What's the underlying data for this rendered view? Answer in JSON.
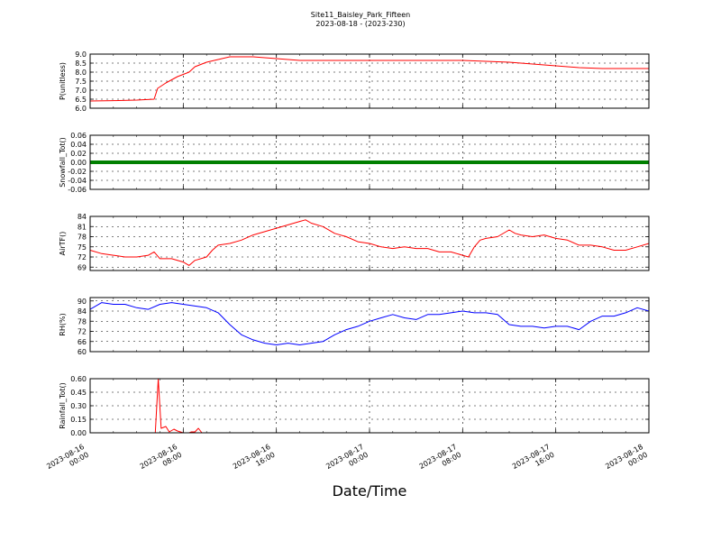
{
  "figure": {
    "title_line1": "Site11_Baisley_Park_Fifteen",
    "title_line2": "2023-08-18 - (2023-230)",
    "xlabel": "Date/Time",
    "x_ticks": [
      {
        "t": 0,
        "line1": "2023-08-16",
        "line2": "00:00"
      },
      {
        "t": 8,
        "line1": "2023-08-16",
        "line2": "08:00"
      },
      {
        "t": 16,
        "line1": "2023-08-16",
        "line2": "16:00"
      },
      {
        "t": 24,
        "line1": "2023-08-17",
        "line2": "00:00"
      },
      {
        "t": 32,
        "line1": "2023-08-17",
        "line2": "08:00"
      },
      {
        "t": 40,
        "line1": "2023-08-17",
        "line2": "16:00"
      },
      {
        "t": 48,
        "line1": "2023-08-18",
        "line2": "00:00"
      }
    ],
    "x_range_hours": [
      0,
      48
    ]
  },
  "chart_data": [
    {
      "type": "line",
      "ylabel": "P(unitless)",
      "ylim": [
        6.0,
        9.0
      ],
      "yticks": [
        "6.0",
        "6.5",
        "7.0",
        "7.5",
        "8.0",
        "8.5",
        "9.0"
      ],
      "grid": true,
      "series": [
        {
          "color": "#ff0000",
          "points": [
            [
              0,
              6.4
            ],
            [
              2,
              6.42
            ],
            [
              4,
              6.45
            ],
            [
              5.5,
              6.5
            ],
            [
              5.8,
              7.1
            ],
            [
              6.5,
              7.4
            ],
            [
              7.5,
              7.75
            ],
            [
              8.5,
              8.0
            ],
            [
              9,
              8.3
            ],
            [
              10,
              8.55
            ],
            [
              11,
              8.7
            ],
            [
              12,
              8.85
            ],
            [
              14,
              8.85
            ],
            [
              16,
              8.75
            ],
            [
              18,
              8.65
            ],
            [
              22,
              8.65
            ],
            [
              28,
              8.65
            ],
            [
              32,
              8.65
            ],
            [
              34,
              8.6
            ],
            [
              36,
              8.55
            ],
            [
              38,
              8.45
            ],
            [
              40,
              8.35
            ],
            [
              42,
              8.25
            ],
            [
              44,
              8.2
            ],
            [
              48,
              8.2
            ]
          ]
        }
      ]
    },
    {
      "type": "line",
      "ylabel": "Snowfall_Tot()",
      "ylim": [
        -0.06,
        0.06
      ],
      "yticks": [
        "-0.06",
        "-0.04",
        "-0.02",
        "0.00",
        "0.02",
        "0.04",
        "0.06"
      ],
      "grid": true,
      "series": [
        {
          "color": "#008000",
          "points": [
            [
              0,
              0
            ],
            [
              48,
              0
            ]
          ]
        }
      ]
    },
    {
      "type": "line",
      "ylabel": "AirTF()",
      "ylim": [
        68,
        84
      ],
      "yticks": [
        "69",
        "72",
        "75",
        "78",
        "81",
        "84"
      ],
      "grid": true,
      "series": [
        {
          "color": "#ff0000",
          "points": [
            [
              0,
              74
            ],
            [
              1,
              73
            ],
            [
              2,
              72.5
            ],
            [
              3,
              72
            ],
            [
              4,
              72
            ],
            [
              5,
              72.5
            ],
            [
              5.5,
              73.5
            ],
            [
              6,
              71.5
            ],
            [
              7,
              71.5
            ],
            [
              8,
              70.5
            ],
            [
              8.5,
              69.5
            ],
            [
              9,
              71
            ],
            [
              10,
              72
            ],
            [
              10.5,
              74
            ],
            [
              11,
              75.5
            ],
            [
              12,
              76
            ],
            [
              13,
              77
            ],
            [
              14,
              78.5
            ],
            [
              15,
              79.5
            ],
            [
              16,
              80.5
            ],
            [
              17,
              81.5
            ],
            [
              18,
              82.5
            ],
            [
              18.5,
              83
            ],
            [
              19,
              82
            ],
            [
              20,
              81
            ],
            [
              21,
              79
            ],
            [
              22,
              78
            ],
            [
              23,
              76.5
            ],
            [
              24,
              76
            ],
            [
              25,
              75
            ],
            [
              26,
              74.5
            ],
            [
              27,
              75
            ],
            [
              28,
              74.5
            ],
            [
              29,
              74.5
            ],
            [
              30,
              73.5
            ],
            [
              31,
              73.5
            ],
            [
              32,
              72.5
            ],
            [
              32.5,
              72
            ],
            [
              33,
              75
            ],
            [
              33.5,
              77
            ],
            [
              34,
              77.5
            ],
            [
              35,
              78
            ],
            [
              36,
              80
            ],
            [
              36.5,
              79
            ],
            [
              37,
              78.5
            ],
            [
              38,
              78
            ],
            [
              39,
              78.5
            ],
            [
              40,
              77.5
            ],
            [
              41,
              77
            ],
            [
              42,
              75.5
            ],
            [
              43,
              75.5
            ],
            [
              44,
              75
            ],
            [
              45,
              74
            ],
            [
              46,
              74
            ],
            [
              47,
              75
            ],
            [
              48,
              76
            ]
          ]
        }
      ]
    },
    {
      "type": "line",
      "ylabel": "RH(%)",
      "ylim": [
        60,
        92
      ],
      "yticks": [
        "60",
        "66",
        "72",
        "78",
        "84",
        "90"
      ],
      "grid": true,
      "series": [
        {
          "color": "#0000ff",
          "points": [
            [
              0,
              85
            ],
            [
              1,
              89
            ],
            [
              2,
              88
            ],
            [
              3,
              88
            ],
            [
              4,
              86
            ],
            [
              5,
              85
            ],
            [
              6,
              88
            ],
            [
              7,
              89
            ],
            [
              8,
              88
            ],
            [
              9,
              87
            ],
            [
              10,
              86
            ],
            [
              11,
              83
            ],
            [
              12,
              76
            ],
            [
              13,
              70
            ],
            [
              14,
              67
            ],
            [
              15,
              65
            ],
            [
              16,
              64
            ],
            [
              17,
              65
            ],
            [
              18,
              64
            ],
            [
              19,
              65
            ],
            [
              20,
              66
            ],
            [
              21,
              70
            ],
            [
              22,
              73
            ],
            [
              23,
              75
            ],
            [
              24,
              78
            ],
            [
              25,
              80
            ],
            [
              26,
              82
            ],
            [
              27,
              80
            ],
            [
              28,
              79
            ],
            [
              29,
              82
            ],
            [
              30,
              82
            ],
            [
              31,
              83
            ],
            [
              32,
              84
            ],
            [
              33,
              83
            ],
            [
              34,
              83
            ],
            [
              35,
              82
            ],
            [
              36,
              76
            ],
            [
              37,
              75
            ],
            [
              38,
              75
            ],
            [
              39,
              74
            ],
            [
              40,
              75
            ],
            [
              41,
              75
            ],
            [
              42,
              73
            ],
            [
              43,
              78
            ],
            [
              44,
              81
            ],
            [
              45,
              81
            ],
            [
              46,
              83
            ],
            [
              47,
              86
            ],
            [
              48,
              84
            ]
          ]
        }
      ]
    },
    {
      "type": "line",
      "ylabel": "Rainfall_Tot()",
      "ylim": [
        0.0,
        0.6
      ],
      "yticks": [
        "0.00",
        "0.15",
        "0.30",
        "0.45",
        "0.60"
      ],
      "grid": true,
      "series": [
        {
          "color": "#ff0000",
          "points": [
            [
              0,
              0
            ],
            [
              1,
              0
            ],
            [
              5.6,
              0
            ],
            [
              5.85,
              0.6
            ],
            [
              6.1,
              0.05
            ],
            [
              6.5,
              0.07
            ],
            [
              6.8,
              0.01
            ],
            [
              7.2,
              0.04
            ],
            [
              7.5,
              0.02
            ],
            [
              8,
              0
            ],
            [
              8.5,
              0
            ],
            [
              8.7,
              0.01
            ],
            [
              9,
              0.01
            ],
            [
              9.3,
              0.05
            ],
            [
              9.6,
              0
            ],
            [
              48,
              0
            ]
          ]
        }
      ]
    }
  ]
}
